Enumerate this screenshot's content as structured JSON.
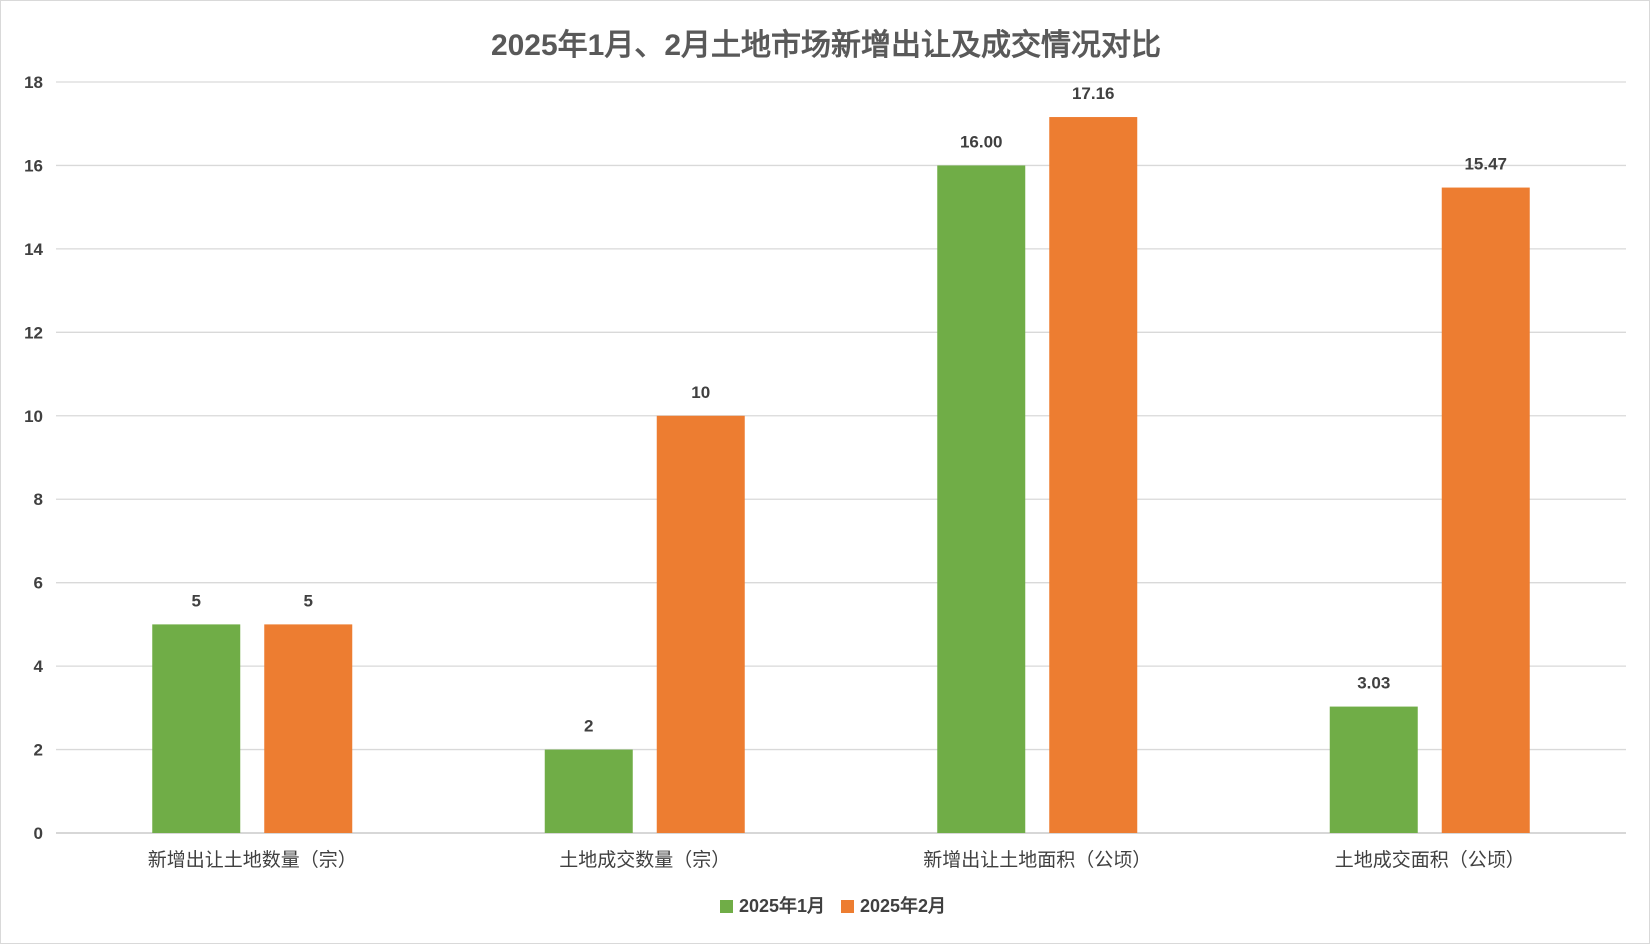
{
  "chart_data": {
    "type": "bar",
    "title": "2025年1月、2月土地市场新增出让及成交情况对比",
    "categories": [
      "新增出让土地数量（宗）",
      "土地成交数量（宗）",
      "新增出让土地面积（公顷）",
      "土地成交面积（公顷）"
    ],
    "series": [
      {
        "name": "2025年1月",
        "color": "#70ad47",
        "values": [
          5,
          2,
          16.0,
          3.03
        ],
        "labels": [
          "5",
          "2",
          "16.00",
          "3.03"
        ]
      },
      {
        "name": "2025年2月",
        "color": "#ed7d31",
        "values": [
          5,
          10,
          17.16,
          15.47
        ],
        "labels": [
          "5",
          "10",
          "17.16",
          "15.47"
        ]
      }
    ],
    "ylim": [
      0,
      18
    ],
    "yticks": [
      0,
      2,
      4,
      6,
      8,
      10,
      12,
      14,
      16,
      18
    ],
    "grid": true,
    "legend": "bottom",
    "xlabel": "",
    "ylabel": ""
  }
}
